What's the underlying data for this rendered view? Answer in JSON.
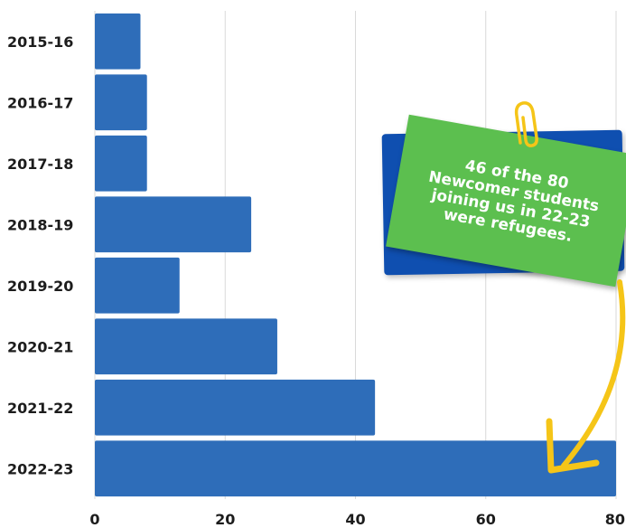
{
  "chart_data": {
    "type": "bar",
    "orientation": "horizontal",
    "categories": [
      "2015-16",
      "2016-17",
      "2017-18",
      "2018-19",
      "2019-20",
      "2020-21",
      "2021-22",
      "2022-23"
    ],
    "values": [
      7,
      8,
      8,
      24,
      13,
      28,
      43,
      80
    ],
    "title": "",
    "xlabel": "",
    "ylabel": "",
    "xlim": [
      0,
      80
    ],
    "xticks": [
      0,
      20,
      40,
      60,
      80
    ],
    "grid": "vertical",
    "legend": "none",
    "bar_color": "#2e6db9",
    "grid_color": "#d9d9d9",
    "annotation": {
      "text": "46 of the 80\nNewcomer students\njoining us in 22-23\nwere refugees.",
      "back_color": "#0f4fb0",
      "front_color": "#5cbf4f",
      "clip_color": "#f5c518",
      "arrow_color": "#f5c518",
      "points_to": "2022-23"
    }
  }
}
